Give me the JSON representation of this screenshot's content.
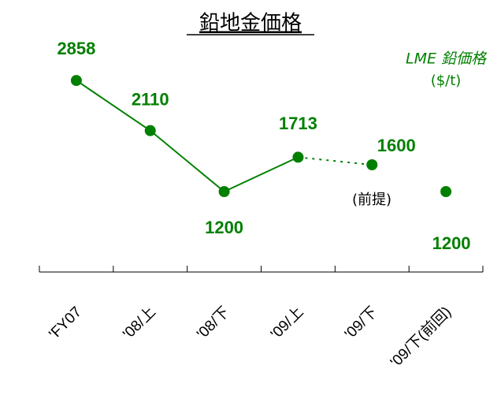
{
  "chart_data": {
    "type": "line",
    "title": "鉛地金価格",
    "legend_title": "LME 鉛価格",
    "unit": "($/t)",
    "annotation": "(前提)",
    "categories": [
      "'FY07",
      "'08/上",
      "'08/下",
      "'09/上",
      "'09/下",
      "'09/下(前回)"
    ],
    "series": [
      {
        "name": "LME 鉛価格",
        "color": "#008000",
        "values": [
          2858,
          2110,
          1200,
          1713,
          1600,
          1200
        ],
        "segment_styles": [
          "solid",
          "solid",
          "solid",
          "dotted",
          "none"
        ]
      }
    ],
    "ylim": [
      0,
      3000
    ],
    "grid": false
  }
}
